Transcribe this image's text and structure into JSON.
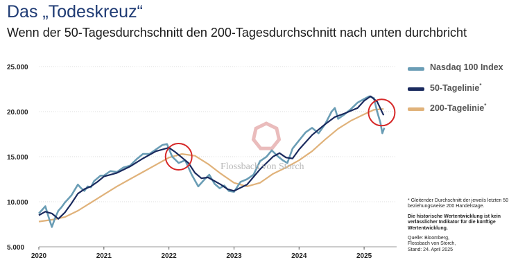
{
  "title": "Das „Todeskreuz“",
  "subtitle": "Wenn der 50-Tagesdurchschnitt den 200-Tagesdurchschnitt nach unten durchbricht",
  "watermark": "Flossbach von Storch",
  "colors": {
    "nasdaq": "#6a9db5",
    "sma50": "#1a2a5e",
    "sma200": "#e0b27a",
    "circle": "#d62828",
    "logo": "#e6b0b0"
  },
  "legend": {
    "nasdaq": "Nasdaq 100 Index",
    "sma50": "50-Tagelinie",
    "sma200": "200-Tagelinie",
    "marker": "*"
  },
  "notes": {
    "footnote": "* Gleitender Durchschnitt der jeweils letzten 50 beziehungsweise 200 Handelstage.",
    "disclaimer": "Die historische Wertentwicklung ist kein verlässlicher Indikator für die künftige Wertentwicklung.",
    "source_line1": "Quelle: Bloomberg,",
    "source_line2": "Flossbach von Storch,",
    "source_line3": "Stand: 24. April 2025"
  },
  "chart_data": {
    "type": "line",
    "ylim": [
      5000,
      25000
    ],
    "xlim": [
      2020.0,
      2025.5
    ],
    "yticks": [
      5000,
      10000,
      15000,
      20000,
      25000
    ],
    "ytick_labels": [
      "5.000",
      "10.000",
      "15.000",
      "20.000",
      "25.000"
    ],
    "xticks": [
      2020,
      2021,
      2022,
      2023,
      2024,
      2025
    ],
    "xtick_labels": [
      "2020",
      "2021",
      "2022",
      "2023",
      "2024",
      "2025"
    ],
    "grid": true,
    "legend_position": "right",
    "series": [
      {
        "name": "Nasdaq 100 Index",
        "key": "nasdaq",
        "x": [
          2020.0,
          2020.05,
          2020.1,
          2020.15,
          2020.2,
          2020.25,
          2020.3,
          2020.35,
          2020.4,
          2020.45,
          2020.5,
          2020.55,
          2020.6,
          2020.65,
          2020.7,
          2020.75,
          2020.8,
          2020.85,
          2020.9,
          2020.95,
          2021.0,
          2021.1,
          2021.2,
          2021.3,
          2021.4,
          2021.5,
          2021.6,
          2021.7,
          2021.8,
          2021.9,
          2021.97,
          2022.05,
          2022.15,
          2022.25,
          2022.35,
          2022.45,
          2022.55,
          2022.62,
          2022.7,
          2022.78,
          2022.85,
          2022.92,
          2023.0,
          2023.1,
          2023.2,
          2023.3,
          2023.4,
          2023.5,
          2023.58,
          2023.68,
          2023.75,
          2023.82,
          2023.9,
          2024.0,
          2024.1,
          2024.2,
          2024.3,
          2024.4,
          2024.5,
          2024.55,
          2024.6,
          2024.7,
          2024.8,
          2024.9,
          2025.0,
          2025.08,
          2025.15,
          2025.2,
          2025.25,
          2025.28,
          2025.31
        ],
        "y": [
          8700,
          9100,
          9500,
          8300,
          7200,
          8200,
          9000,
          9400,
          9900,
          10300,
          10700,
          11300,
          11900,
          11500,
          11200,
          11700,
          11600,
          12300,
          12600,
          12900,
          12900,
          13400,
          13300,
          13800,
          14000,
          14700,
          15300,
          15300,
          15800,
          16300,
          16400,
          15000,
          14300,
          14600,
          13000,
          11700,
          12500,
          13000,
          12000,
          11500,
          11800,
          11200,
          11100,
          12200,
          12500,
          13000,
          14500,
          15000,
          15700,
          15000,
          14600,
          14300,
          15900,
          16800,
          17700,
          18200,
          17600,
          18600,
          20000,
          20400,
          19200,
          19700,
          20300,
          21000,
          21400,
          21700,
          21500,
          20000,
          18800,
          17600,
          18200
        ]
      },
      {
        "name": "50-Tagelinie",
        "key": "sma50",
        "x": [
          2020.0,
          2020.1,
          2020.2,
          2020.3,
          2020.4,
          2020.5,
          2020.6,
          2020.7,
          2020.8,
          2020.9,
          2021.0,
          2021.2,
          2021.4,
          2021.6,
          2021.8,
          2022.0,
          2022.1,
          2022.2,
          2022.3,
          2022.4,
          2022.5,
          2022.6,
          2022.7,
          2022.8,
          2022.9,
          2023.0,
          2023.2,
          2023.4,
          2023.6,
          2023.7,
          2023.8,
          2023.9,
          2024.0,
          2024.2,
          2024.4,
          2024.55,
          2024.7,
          2024.9,
          2025.0,
          2025.1,
          2025.2,
          2025.3
        ],
        "y": [
          8500,
          8900,
          8700,
          8100,
          8800,
          9800,
          10900,
          11400,
          11700,
          12200,
          12800,
          13200,
          13900,
          14800,
          15600,
          16000,
          15500,
          14900,
          14300,
          13200,
          12600,
          12700,
          12300,
          11900,
          11400,
          11200,
          11900,
          13600,
          15000,
          15400,
          14900,
          14800,
          15800,
          17400,
          18600,
          19400,
          19800,
          20400,
          21200,
          21700,
          21100,
          19600
        ]
      },
      {
        "name": "200-Tagelinie",
        "key": "sma200",
        "x": [
          2020.0,
          2020.2,
          2020.4,
          2020.6,
          2020.8,
          2021.0,
          2021.2,
          2021.4,
          2021.6,
          2021.8,
          2022.0,
          2022.2,
          2022.4,
          2022.6,
          2022.8,
          2023.0,
          2023.2,
          2023.4,
          2023.6,
          2023.8,
          2024.0,
          2024.2,
          2024.4,
          2024.6,
          2024.8,
          2025.0,
          2025.15,
          2025.3
        ],
        "y": [
          7800,
          8000,
          8300,
          9000,
          9900,
          10800,
          11700,
          12500,
          13300,
          14100,
          14900,
          15300,
          15100,
          14200,
          13100,
          12100,
          11700,
          12100,
          13100,
          13800,
          14600,
          15600,
          16900,
          18100,
          19000,
          19700,
          20200,
          20300
        ]
      }
    ],
    "highlights": [
      {
        "x": 2022.15,
        "y": 15000
      },
      {
        "x": 2025.27,
        "y": 19900
      }
    ]
  }
}
